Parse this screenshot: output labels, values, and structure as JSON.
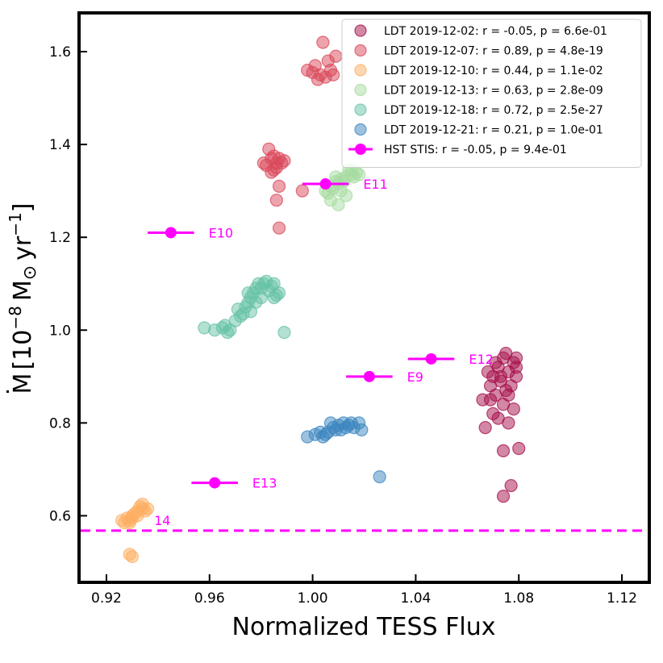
{
  "chart_data": {
    "type": "scatter",
    "xlabel": "Normalized TESS Flux",
    "ylabel": "Ṁ [10⁻⁸ M☉ yr⁻¹]",
    "ylabel_base": "M",
    "ylabel_bracket_open": "[10",
    "ylabel_exp1": "−8",
    "ylabel_unit": "M",
    "ylabel_sun": "⊙",
    "ylabel_yr": "yr",
    "ylabel_exp2": "−1",
    "ylabel_bracket_close": "]",
    "xlim": [
      0.91,
      1.13
    ],
    "ylim": [
      0.46,
      1.68
    ],
    "xticks": [
      0.92,
      0.96,
      1.0,
      1.04,
      1.08,
      1.12
    ],
    "xtick_labels": [
      "0.92",
      "0.96",
      "1.00",
      "1.04",
      "1.08",
      "1.12"
    ],
    "yticks": [
      0.6,
      0.8,
      1.0,
      1.2,
      1.4,
      1.6
    ],
    "ytick_labels": [
      "0.6",
      "0.8",
      "1.0",
      "1.2",
      "1.4",
      "1.6"
    ],
    "hline": {
      "y": 0.568,
      "color": "#ff00ff",
      "style": "dashed"
    },
    "legend": {
      "placement": "top-right",
      "entries": [
        {
          "label": "LDT 2019-12-02: r = -0.05, p = 6.6e-01",
          "color": "#a50f4c"
        },
        {
          "label": "LDT 2019-12-07: r = 0.89, p = 4.8e-19",
          "color": "#d9475a"
        },
        {
          "label": "LDT 2019-12-10: r = 0.44, p = 1.1e-02",
          "color": "#fdae61"
        },
        {
          "label": "LDT 2019-12-13: r = 0.63, p = 2.8e-09",
          "color": "#a6dba0"
        },
        {
          "label": "LDT 2019-12-18: r = 0.72, p = 2.5e-27",
          "color": "#66c2a5"
        },
        {
          "label": "LDT 2019-12-21: r = 0.21, p = 1.0e-01",
          "color": "#3b86c0"
        },
        {
          "label": "HST STIS: r = -0.05, p = 9.4e-01",
          "color": "#ff00ff"
        }
      ]
    },
    "series": [
      {
        "name": "LDT 2019-12-02",
        "color": "#a50f4c",
        "points": [
          [
            1.074,
            0.94
          ],
          [
            1.078,
            0.93
          ],
          [
            1.072,
            0.92
          ],
          [
            1.076,
            0.91
          ],
          [
            1.07,
            0.9
          ],
          [
            1.079,
            0.92
          ],
          [
            1.073,
            0.89
          ],
          [
            1.068,
            0.91
          ],
          [
            1.075,
            0.87
          ],
          [
            1.071,
            0.86
          ],
          [
            1.077,
            0.88
          ],
          [
            1.069,
            0.85
          ],
          [
            1.074,
            0.84
          ],
          [
            1.078,
            0.83
          ],
          [
            1.072,
            0.81
          ],
          [
            1.076,
            0.8
          ],
          [
            1.07,
            0.82
          ],
          [
            1.066,
            0.85
          ],
          [
            1.079,
            0.9
          ],
          [
            1.067,
            0.79
          ],
          [
            1.074,
            0.74
          ],
          [
            1.08,
            0.745
          ],
          [
            1.077,
            0.665
          ],
          [
            1.074,
            0.642
          ],
          [
            1.071,
            0.93
          ],
          [
            1.075,
            0.95
          ],
          [
            1.079,
            0.94
          ],
          [
            1.073,
            0.9
          ],
          [
            1.069,
            0.88
          ],
          [
            1.076,
            0.86
          ]
        ]
      },
      {
        "name": "LDT 2019-12-07",
        "color": "#d9475a",
        "points": [
          [
            0.984,
            1.37
          ],
          [
            0.986,
            1.36
          ],
          [
            0.982,
            1.355
          ],
          [
            0.985,
            1.345
          ],
          [
            0.988,
            1.36
          ],
          [
            0.983,
            1.39
          ],
          [
            0.987,
            1.37
          ],
          [
            0.981,
            1.36
          ],
          [
            0.986,
            1.35
          ],
          [
            0.984,
            1.34
          ],
          [
            0.989,
            1.365
          ],
          [
            0.985,
            1.375
          ],
          [
            0.987,
            1.31
          ],
          [
            0.986,
            1.28
          ],
          [
            0.996,
            1.3
          ],
          [
            0.987,
            1.22
          ],
          [
            0.998,
            1.56
          ],
          [
            1.0,
            1.555
          ],
          [
            1.003,
            1.55
          ],
          [
            1.005,
            1.545
          ],
          [
            1.007,
            1.56
          ],
          [
            1.002,
            1.54
          ],
          [
            1.004,
            1.62
          ],
          [
            1.006,
            1.58
          ],
          [
            1.009,
            1.59
          ],
          [
            1.001,
            1.57
          ],
          [
            1.008,
            1.55
          ]
        ]
      },
      {
        "name": "LDT 2019-12-10",
        "color": "#fdae61",
        "points": [
          [
            0.926,
            0.59
          ],
          [
            0.928,
            0.595
          ],
          [
            0.93,
            0.6
          ],
          [
            0.927,
            0.585
          ],
          [
            0.929,
            0.59
          ],
          [
            0.931,
            0.605
          ],
          [
            0.932,
            0.61
          ],
          [
            0.934,
            0.615
          ],
          [
            0.933,
            0.62
          ],
          [
            0.935,
            0.61
          ],
          [
            0.936,
            0.615
          ],
          [
            0.934,
            0.625
          ],
          [
            0.93,
            0.595
          ],
          [
            0.929,
            0.585
          ],
          [
            0.932,
            0.6
          ],
          [
            0.929,
            0.517
          ],
          [
            0.93,
            0.512
          ]
        ]
      },
      {
        "name": "LDT 2019-12-13",
        "color": "#a6dba0",
        "points": [
          [
            1.005,
            1.3
          ],
          [
            1.007,
            1.31
          ],
          [
            1.009,
            1.32
          ],
          [
            1.011,
            1.325
          ],
          [
            1.013,
            1.33
          ],
          [
            1.015,
            1.335
          ],
          [
            1.017,
            1.34
          ],
          [
            1.012,
            1.32
          ],
          [
            1.01,
            1.315
          ],
          [
            1.008,
            1.305
          ],
          [
            1.014,
            1.345
          ],
          [
            1.016,
            1.33
          ],
          [
            1.018,
            1.335
          ],
          [
            1.007,
            1.28
          ],
          [
            1.01,
            1.27
          ],
          [
            1.013,
            1.29
          ],
          [
            1.006,
            1.295
          ],
          [
            1.015,
            1.345
          ],
          [
            1.011,
            1.3
          ],
          [
            1.009,
            1.33
          ]
        ]
      },
      {
        "name": "LDT 2019-12-18",
        "color": "#66c2a5",
        "points": [
          [
            0.958,
            1.005
          ],
          [
            0.962,
            1.0
          ],
          [
            0.965,
            1.005
          ],
          [
            0.967,
            0.995
          ],
          [
            0.966,
            1.01
          ],
          [
            0.97,
            1.02
          ],
          [
            0.972,
            1.03
          ],
          [
            0.974,
            1.05
          ],
          [
            0.975,
            1.06
          ],
          [
            0.976,
            1.07
          ],
          [
            0.977,
            1.08
          ],
          [
            0.978,
            1.09
          ],
          [
            0.979,
            1.1
          ],
          [
            0.98,
            1.09
          ],
          [
            0.981,
            1.1
          ],
          [
            0.983,
            1.085
          ],
          [
            0.985,
            1.07
          ],
          [
            0.986,
            1.075
          ],
          [
            0.982,
            1.105
          ],
          [
            0.978,
            1.06
          ],
          [
            0.976,
            1.04
          ],
          [
            0.973,
            1.035
          ],
          [
            0.971,
            1.045
          ],
          [
            0.984,
            1.095
          ],
          [
            0.987,
            1.08
          ],
          [
            0.989,
            0.995
          ],
          [
            0.98,
            1.07
          ],
          [
            0.975,
            1.08
          ],
          [
            0.968,
            1.0
          ],
          [
            0.985,
            1.1
          ]
        ]
      },
      {
        "name": "LDT 2019-12-21",
        "color": "#3b86c0",
        "points": [
          [
            0.998,
            0.77
          ],
          [
            1.001,
            0.775
          ],
          [
            1.004,
            0.77
          ],
          [
            1.006,
            0.78
          ],
          [
            1.008,
            0.79
          ],
          [
            1.01,
            0.795
          ],
          [
            1.012,
            0.8
          ],
          [
            1.014,
            0.795
          ],
          [
            1.016,
            0.79
          ],
          [
            1.018,
            0.8
          ],
          [
            1.009,
            0.785
          ],
          [
            1.005,
            0.775
          ],
          [
            1.003,
            0.78
          ],
          [
            1.007,
            0.8
          ],
          [
            1.011,
            0.785
          ],
          [
            1.015,
            0.8
          ],
          [
            1.013,
            0.79
          ],
          [
            1.019,
            0.785
          ],
          [
            1.026,
            0.684
          ]
        ]
      }
    ],
    "hst_points": [
      {
        "x": 0.945,
        "y": 1.21,
        "xerr": 0.009,
        "label": "E10"
      },
      {
        "x": 1.005,
        "y": 1.315,
        "xerr": 0.009,
        "label": "E11"
      },
      {
        "x": 1.046,
        "y": 0.938,
        "xerr": 0.009,
        "label": "E12"
      },
      {
        "x": 1.022,
        "y": 0.9,
        "xerr": 0.009,
        "label": "E9"
      },
      {
        "x": 0.962,
        "y": 0.671,
        "xerr": 0.009,
        "label": "E13"
      }
    ],
    "hline_label": "14"
  }
}
